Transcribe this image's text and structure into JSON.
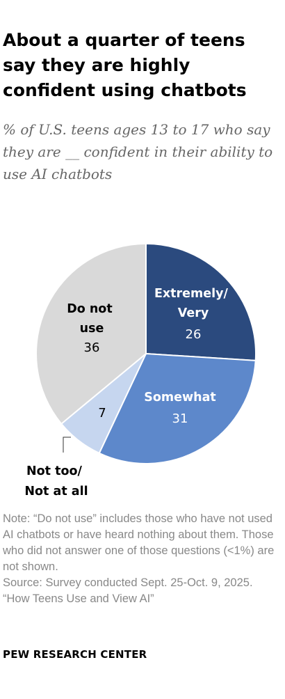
{
  "title": "About a quarter of teens say they are highly confident using chatbots",
  "subtitle": "% of U.S. teens ages 13 to 17 who say they are __ confident in their ability to use AI chatbots",
  "chart_data": {
    "type": "pie",
    "slices": [
      {
        "label_lines": [
          "Extremely/",
          "Very"
        ],
        "value": 26,
        "color": "#2b4a7e"
      },
      {
        "label_lines": [
          "Somewhat"
        ],
        "value": 31,
        "color": "#5d88cb"
      },
      {
        "label_lines": [
          "Not too/",
          "Not at all"
        ],
        "value": 7,
        "color": "#c6d6ef"
      },
      {
        "label_lines": [
          "Do not",
          "use"
        ],
        "value": 36,
        "color": "#d9d9d9"
      }
    ]
  },
  "notes": [
    "Note: “Do not use” includes those who have not used AI chatbots or have heard nothing about them. Those who did not answer one of those questions (<1%) are not shown.",
    "Source: Survey conducted Sept. 25-Oct. 9, 2025.",
    "“How Teens Use and View AI”"
  ],
  "logo": "PEW RESEARCH CENTER"
}
